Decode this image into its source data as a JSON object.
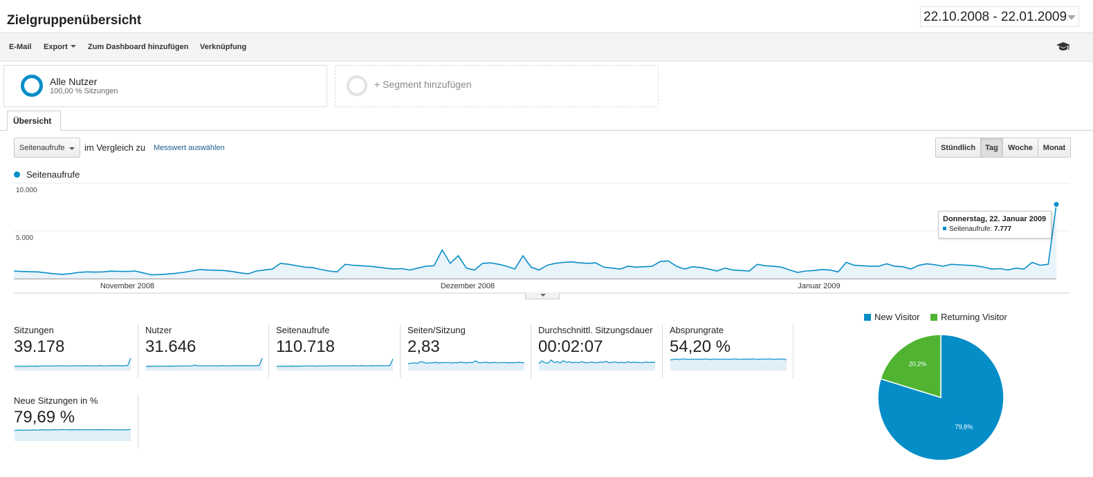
{
  "header": {
    "title": "Zielgruppenübersicht",
    "date_range": "22.10.2008 - 22.01.2009"
  },
  "toolbar": {
    "email": "E-Mail",
    "export": "Export",
    "dashboard": "Zum Dashboard hinzufügen",
    "shortcut": "Verknüpfung",
    "icon": "graduation-cap-icon"
  },
  "segments": {
    "all_users": {
      "name": "Alle Nutzer",
      "sub": "100,00 % Sitzungen"
    },
    "add": "+ Segment hinzufügen"
  },
  "tabs": {
    "overview": "Übersicht"
  },
  "controls": {
    "metric_select": "Seitenaufrufe",
    "compare_text": "im Vergleich zu",
    "compare_link": "Messwert auswählen",
    "granularity": [
      "Stündlich",
      "Tag",
      "Woche",
      "Monat"
    ],
    "granularity_active": "Tag"
  },
  "chart_data": [
    {
      "type": "area",
      "title": "",
      "series": [
        {
          "name": "Seitenaufrufe",
          "color": "#058dc7",
          "values": [
            800,
            750,
            720,
            700,
            600,
            500,
            450,
            520,
            650,
            700,
            680,
            700,
            780,
            760,
            750,
            800,
            600,
            400,
            420,
            480,
            550,
            650,
            800,
            950,
            900,
            880,
            850,
            750,
            600,
            500,
            800,
            900,
            1000,
            1600,
            1500,
            1350,
            1200,
            1150,
            950,
            800,
            700,
            1500,
            1400,
            1350,
            1300,
            1200,
            1100,
            1000,
            1050,
            900,
            1100,
            1300,
            1350,
            3000,
            1600,
            2400,
            1100,
            900,
            1600,
            1650,
            1500,
            1300,
            1000,
            2400,
            1200,
            900,
            1400,
            1600,
            1700,
            1750,
            1650,
            1600,
            1650,
            1200,
            1100,
            1000,
            1300,
            1200,
            1250,
            1300,
            1800,
            1850,
            1300,
            1000,
            1250,
            1150,
            1000,
            800,
            1100,
            900,
            850,
            800,
            1500,
            1350,
            1300,
            1200,
            900,
            650,
            800,
            850,
            950,
            900,
            700,
            1700,
            1400,
            1350,
            1300,
            1300,
            1550,
            1300,
            1250,
            1000,
            1400,
            1550,
            1450,
            1300,
            1500,
            1450,
            1400,
            1350,
            1200,
            1000,
            1050,
            900,
            1100,
            1000,
            1700,
            1400,
            1500,
            7777
          ]
        }
      ],
      "x_labels": [
        "November 2008",
        "Dezember 2008",
        "Januar 2009"
      ],
      "y_ticks": [
        "10.000",
        "5.000"
      ],
      "ylim": [
        0,
        10000
      ],
      "tooltip": {
        "title": "Donnerstag, 22. Januar 2009",
        "series": "Seitenaufrufe:",
        "value": "7.777"
      }
    },
    {
      "type": "pie",
      "categories": [
        "New Visitor",
        "Returning Visitor"
      ],
      "values": [
        79.8,
        20.2
      ],
      "labels": [
        "79,8%",
        "20,2%"
      ],
      "colors": [
        "#058dc7",
        "#50b432"
      ]
    }
  ],
  "metrics": [
    {
      "label": "Sitzungen",
      "value": "39.178",
      "spark": [
        3,
        3,
        3.2,
        3.1,
        3,
        3.3,
        3.2,
        3.4,
        3.3,
        3.5,
        3.6,
        3.5,
        3.4,
        3.6,
        3.5,
        3.7,
        3.6,
        3.5,
        3.6,
        3.7,
        3.6,
        3.7,
        3.6,
        3.8,
        3.7,
        3.6,
        3.7,
        3.6,
        3.8,
        3.7,
        3.6,
        3.7,
        3.8,
        3.7,
        3.8,
        3.7,
        3.8,
        3.9,
        12
      ]
    },
    {
      "label": "Nutzer",
      "value": "31.646",
      "spark": [
        3,
        3.1,
        3,
        3.2,
        3.1,
        3.3,
        3.2,
        3.3,
        3.4,
        3.3,
        3.5,
        3.4,
        3.5,
        3.4,
        3.6,
        3.5,
        4.5,
        3.5,
        3.6,
        3.7,
        3.6,
        3.7,
        3.6,
        3.7,
        3.6,
        3.8,
        3.7,
        3.6,
        3.7,
        3.8,
        3.7,
        3.8,
        3.7,
        3.8,
        3.7,
        3.8,
        3.9,
        3.8,
        12
      ]
    },
    {
      "label": "Seitenaufrufe",
      "value": "110.718",
      "spark": [
        3,
        3.2,
        3,
        3.3,
        3.1,
        3.4,
        3.2,
        3.4,
        3.3,
        3.5,
        3.6,
        3.4,
        3.5,
        3.3,
        3.6,
        3.5,
        3.4,
        3.6,
        3.5,
        3.7,
        3.6,
        3.5,
        3.7,
        3.6,
        3.5,
        3.8,
        3.7,
        3.6,
        3.8,
        3.7,
        3.6,
        3.8,
        3.7,
        3.9,
        3.8,
        3.7,
        3.9,
        3.8,
        11
      ]
    },
    {
      "label": "Seiten/Sitzung",
      "value": "2,83",
      "spark": [
        6,
        6.5,
        7,
        6.2,
        8,
        7.5,
        6.4,
        7,
        6.8,
        7.5,
        6.6,
        7.2,
        6.9,
        7.4,
        6.5,
        7.1,
        6.8,
        7.6,
        7.2,
        6.8,
        7.4,
        6.9,
        9,
        7.1,
        6.9,
        7.5,
        7.2,
        6.8,
        7.4,
        7,
        6.9,
        7.3,
        7.1,
        6.8,
        7.2,
        7,
        7.4,
        7.1,
        7
      ]
    },
    {
      "label": "Durchschnittl. Sitzungsdauer",
      "value": "00:02:07",
      "spark": [
        6,
        9,
        7,
        6.5,
        10,
        7.2,
        8,
        6.8,
        9.2,
        7.4,
        8,
        7,
        7.6,
        6.8,
        8.2,
        7.1,
        6.9,
        7.8,
        7.2,
        7,
        7.9,
        7.3,
        8.5,
        6.9,
        7.4,
        7.8,
        7,
        7.5,
        6.8,
        8,
        7.1,
        7.6,
        7.2,
        7.3,
        6.9,
        7.8,
        7.2,
        7.5,
        7.4
      ]
    },
    {
      "label": "Absprungrate",
      "value": "54,20 %",
      "spark": [
        10,
        10.5,
        11,
        10.4,
        11.2,
        10.8,
        10.5,
        11,
        10.7,
        10.9,
        10.6,
        11.1,
        10.8,
        10.5,
        11,
        10.9,
        10.7,
        10.8,
        11,
        10.6,
        10.9,
        11.1,
        10.8,
        10.7,
        11,
        10.9,
        10.8,
        11.2,
        10.7,
        10.9,
        11,
        10.8,
        11.1,
        10.9,
        10.7,
        11,
        10.8,
        11.2,
        10
      ]
    },
    {
      "label": "Neue Sitzungen in %",
      "value": "79,69 %",
      "spark": [
        10,
        10.2,
        10.4,
        10.2,
        10.5,
        10.3,
        10.6,
        10.4,
        10.6,
        10.8,
        10.5,
        10.7,
        10.6,
        10.9,
        10.7,
        10.8,
        11,
        10.7,
        10.8,
        10.9,
        10.7,
        10.9,
        10.8,
        10.7,
        10.9,
        10.8,
        10.7,
        10.8,
        10.9,
        10.8,
        10.7,
        10.9,
        10.8,
        10.7,
        10.6,
        10.8,
        10.7,
        10.6,
        11.5
      ]
    }
  ]
}
